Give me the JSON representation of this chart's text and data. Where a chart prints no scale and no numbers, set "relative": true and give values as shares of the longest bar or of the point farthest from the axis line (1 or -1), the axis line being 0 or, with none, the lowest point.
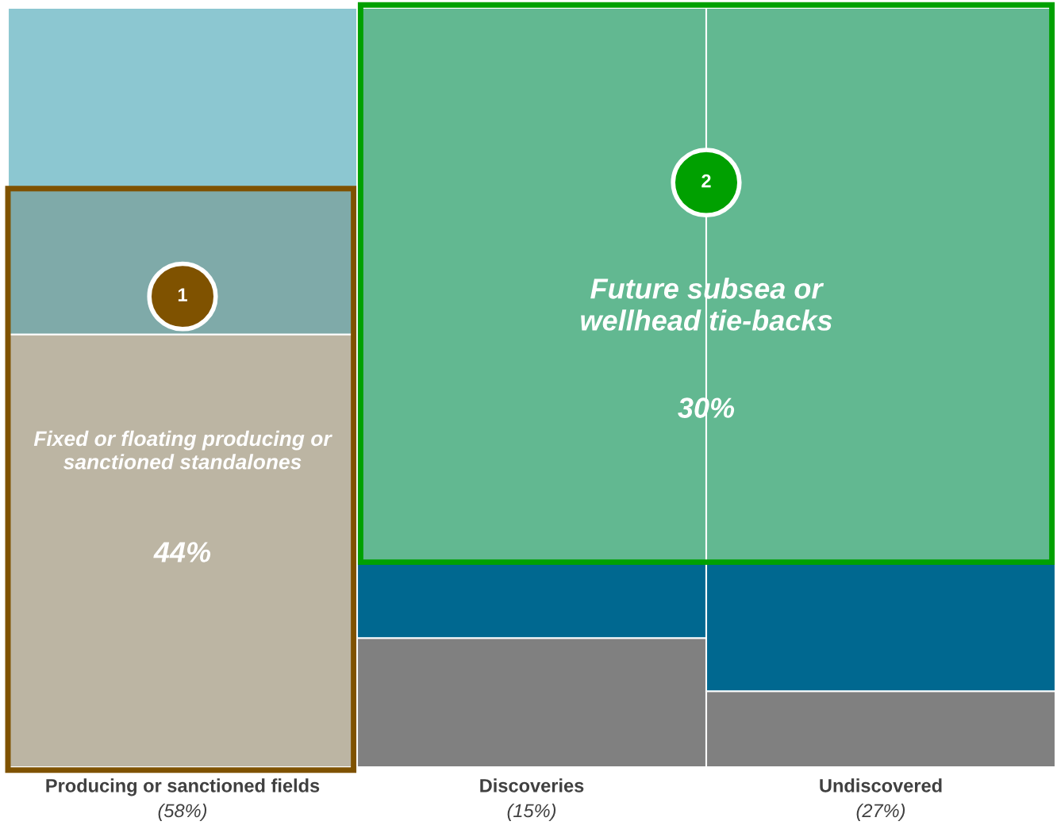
{
  "chart_data": {
    "type": "bar",
    "relative": true,
    "stacked": true,
    "categories": [
      "Producing or sanctioned fields",
      "Discoveries",
      "Undiscovered"
    ],
    "series": [
      {
        "color": "#808080",
        "values": [
          null,
          0.17,
          0.1
        ]
      },
      {
        "color": "#006890",
        "values": [
          null,
          0.1,
          0.17
        ]
      },
      {
        "color": "#bcb5a3",
        "values": [
          0.57,
          null,
          null
        ]
      },
      {
        "color": "#7faaa9",
        "values": [
          0.19,
          null,
          null
        ]
      },
      {
        "color": "#62b891",
        "values": [
          null,
          0.73,
          0.73
        ]
      },
      {
        "color": "#8cc7d1",
        "values": [
          0.24,
          null,
          null
        ]
      }
    ],
    "annotations": [
      "1",
      "Fixed or floating producing or\nsanctioned standalones",
      "44%",
      "2",
      "Future subsea or\nwellhead tie-backs",
      "30%",
      "(58%)",
      "(15%)",
      "(27%)"
    ]
  }
}
